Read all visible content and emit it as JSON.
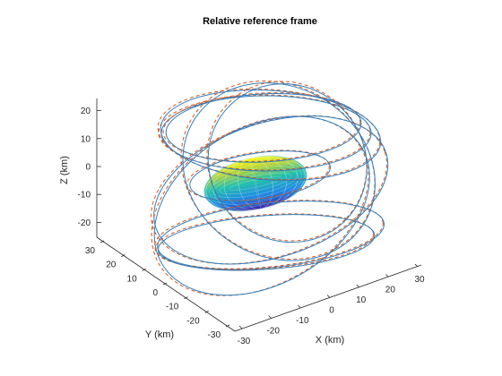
{
  "chart_data": {
    "type": "line3d",
    "title": "Relative reference frame",
    "xlabel": "X (km)",
    "ylabel": "Y (km)",
    "zlabel": "Z (km)",
    "xlim": [
      -30,
      30
    ],
    "ylim": [
      -30,
      30
    ],
    "zlim": [
      -25,
      25
    ],
    "x_ticks": [
      -30,
      -20,
      -10,
      0,
      10,
      20,
      30
    ],
    "y_ticks": [
      -30,
      -20,
      -10,
      0,
      10,
      20,
      30
    ],
    "z_ticks": [
      -20,
      -10,
      0,
      10,
      20
    ],
    "grid": false,
    "series": [
      {
        "style": "line",
        "color": "#2f7fbf"
      },
      {
        "style": "dashed-dots",
        "color": "#d95319"
      }
    ],
    "surface": {
      "shape": "ellipsoid",
      "semi_axes_km": [
        9,
        5.5,
        4
      ],
      "colormap": "parula"
    }
  }
}
